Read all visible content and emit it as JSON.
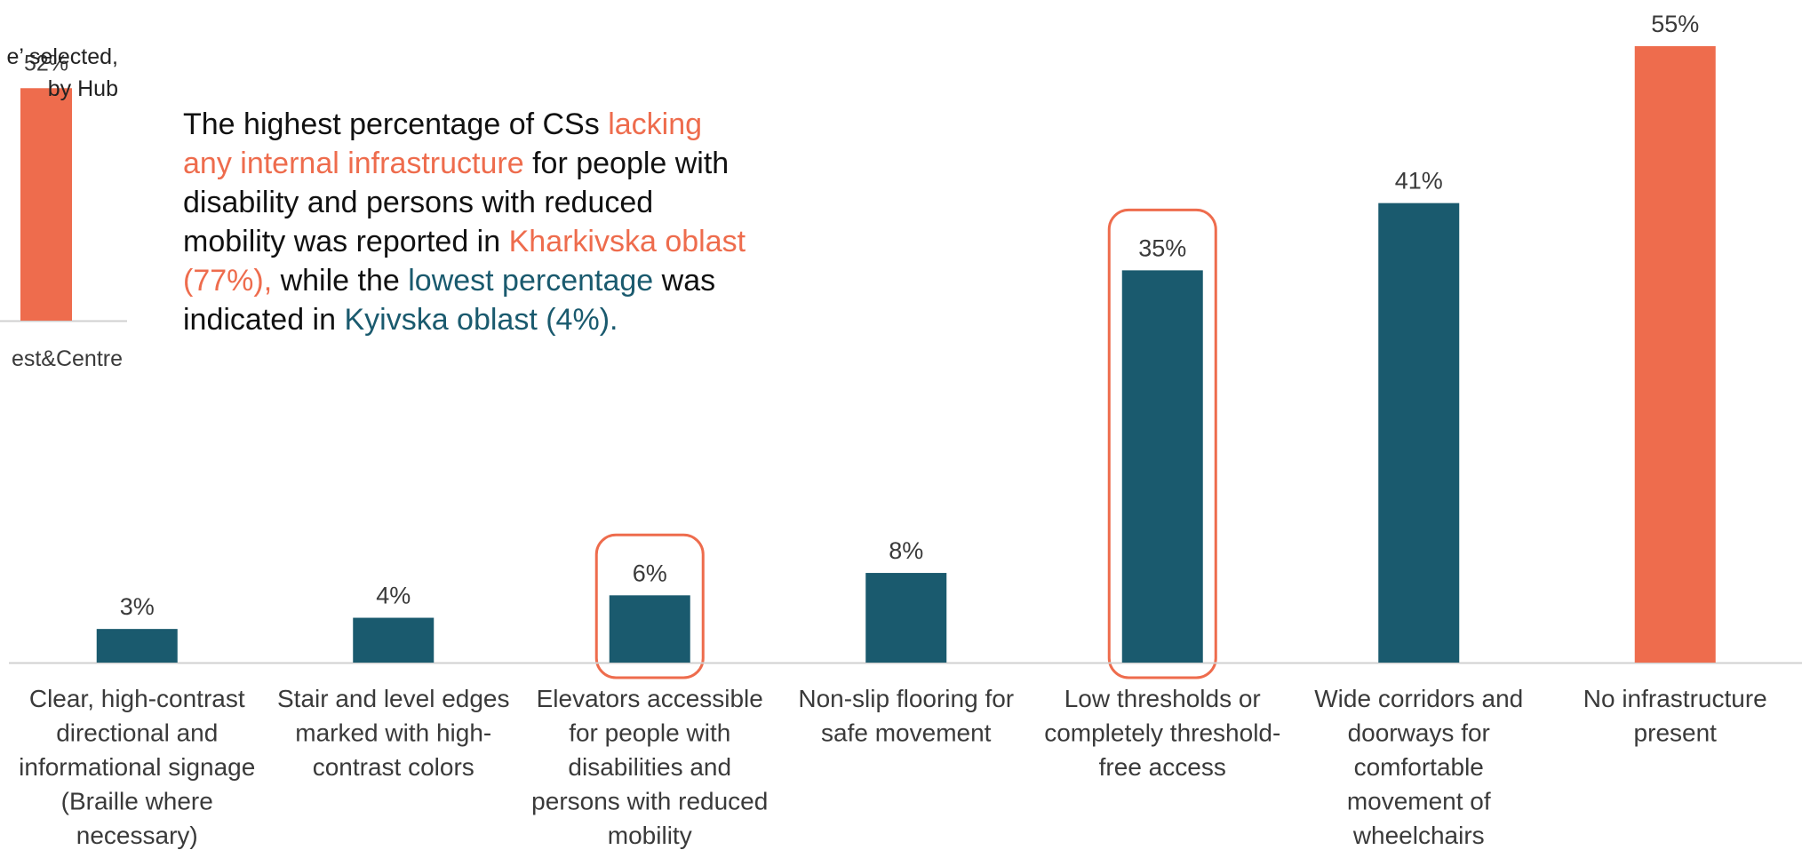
{
  "colors": {
    "primary": "#1a5a6e",
    "highlight": "#ee6c4d",
    "axis": "#d0d0d0",
    "text": "#222222",
    "label_text": "#3a3a3a"
  },
  "left_panel": {
    "subtitle_line1": "e’ selected,",
    "subtitle_line2": "by Hub",
    "bar_value_label": "52%",
    "category_label": "est&Centre"
  },
  "callout": {
    "part1": "The highest percentage of CSs ",
    "part2_highlight": "lacking any internal infrastructure",
    "part3": " for people with disability and persons with reduced mobility was reported in ",
    "part4_highlight": "Kharkivska oblast (77%),",
    "part5": " while the ",
    "part6_highlight": "lowest percentage",
    "part7": " was indicated in ",
    "part8_highlight": "Kyivska oblast (4%)."
  },
  "chart_data": [
    {
      "type": "bar",
      "categories": [
        ""
      ],
      "values": [
        52
      ],
      "value_labels": [
        "52%"
      ],
      "tick_labels": [
        "est&Centre"
      ],
      "ylim": [
        0,
        60
      ],
      "grid": false,
      "highlight_index": [
        0
      ]
    },
    {
      "type": "bar",
      "categories": [
        "Clear, high-contrast directional and informational signage (Braille where necessary)",
        "Stair and level edges marked with high-contrast colors",
        "Elevators accessible for people with disabilities and persons with reduced mobility",
        "Non-slip flooring for safe movement",
        "Low thresholds or completely threshold-free access",
        "Wide corridors and doorways for comfortable movement of wheelchairs",
        "No infrastructure present"
      ],
      "category_lines": [
        [
          "Clear, high-contrast",
          "directional and",
          "informational signage",
          "(Braille where",
          "necessary)"
        ],
        [
          "Stair and level edges",
          "marked with high-",
          "contrast colors"
        ],
        [
          "Elevators accessible",
          "for people with",
          "disabilities and",
          "persons with reduced",
          "mobility"
        ],
        [
          "Non-slip flooring for",
          "safe movement"
        ],
        [
          "Low thresholds or",
          "completely threshold-",
          "free access"
        ],
        [
          "Wide corridors and",
          "doorways for",
          "comfortable",
          "movement of",
          "wheelchairs"
        ],
        [
          "No infrastructure",
          "present"
        ]
      ],
      "values": [
        3,
        4,
        6,
        8,
        35,
        41,
        55
      ],
      "value_labels": [
        "3%",
        "4%",
        "6%",
        "8%",
        "35%",
        "41%",
        "55%"
      ],
      "bar_colors": [
        "#1a5a6e",
        "#1a5a6e",
        "#1a5a6e",
        "#1a5a6e",
        "#1a5a6e",
        "#1a5a6e",
        "#ee6c4d"
      ],
      "outlined_index": [
        2,
        4
      ],
      "ylim": [
        0,
        55
      ],
      "grid": false
    }
  ]
}
